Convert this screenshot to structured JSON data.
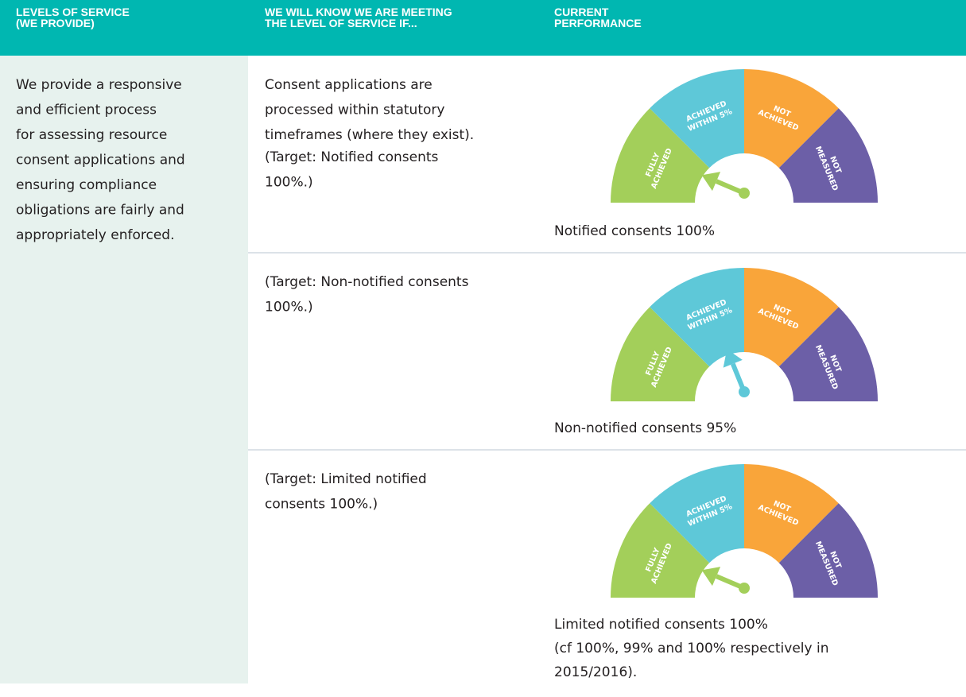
{
  "header": {
    "columns": [
      [
        "LEVELS OF SERVICE",
        "(WE PROVIDE)"
      ],
      [
        "WE WILL KNOW WE ARE MEETING",
        "THE LEVEL OF SERVICE IF..."
      ],
      [
        "CURRENT",
        "PERFORMANCE"
      ]
    ]
  },
  "level_of_service": [
    "We provide a responsive",
    "and efficient process",
    "for assessing resource",
    "consent applications and",
    "ensuring compliance",
    "obligations are fairly and",
    "appropriately enforced."
  ],
  "gauge_labels": [
    [
      "FULLY",
      "ACHIEVED"
    ],
    [
      "ACHIEVED",
      "WITHIN 5%"
    ],
    [
      "NOT",
      "ACHIEVED"
    ],
    [
      "NOT",
      "MEASURED"
    ]
  ],
  "rows": [
    {
      "measure": [
        "Consent applications are",
        "processed within statutory",
        "timeframes (where they exist)."
      ],
      "target": [
        "(Target: Notified consents",
        "100%.)"
      ],
      "caption": [
        "Notified consents 100%"
      ]
    },
    {
      "target": [
        "(Target: Non-notified consents",
        "100%.)"
      ],
      "caption": [
        "Non-notified consents 95%"
      ]
    },
    {
      "target": [
        "(Target: Limited notified",
        "consents 100%.)"
      ],
      "caption": [
        "Limited notified consents 100%",
        "(cf 100%, 99% and 100% respectively in",
        "2015/2016)."
      ]
    }
  ]
}
